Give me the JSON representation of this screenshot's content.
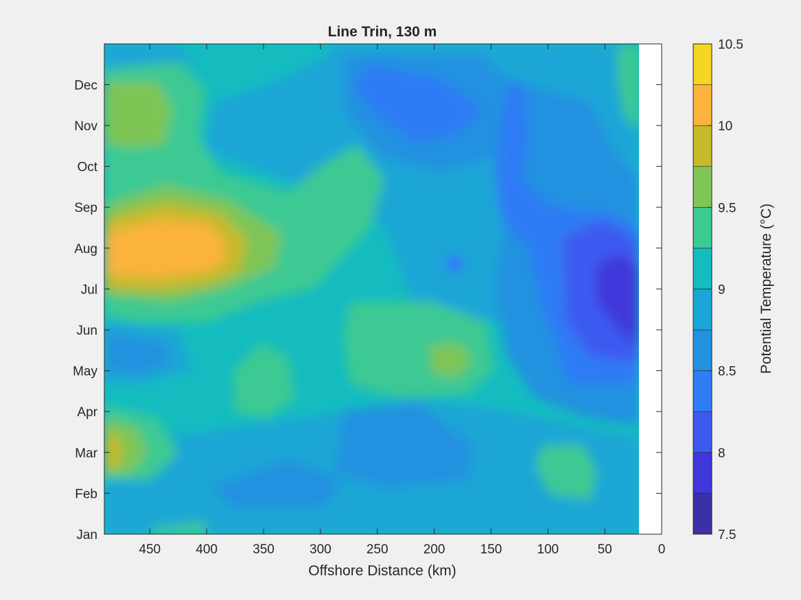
{
  "chart_data": {
    "type": "heatmap",
    "title": "Line Trin, 130 m",
    "xlabel": "Offshore Distance (km)",
    "ylabel": "",
    "x_reversed": true,
    "xlim": [
      0,
      490
    ],
    "x_ticks": [
      450,
      400,
      350,
      300,
      250,
      200,
      150,
      100,
      50,
      0
    ],
    "x_data_extent": [
      20,
      490
    ],
    "y_labels": [
      "Jan",
      "Feb",
      "Mar",
      "Apr",
      "May",
      "Jun",
      "Jul",
      "Aug",
      "Sep",
      "Oct",
      "Nov",
      "Dec"
    ],
    "colorbar": {
      "label": "Potential Temperature (°C)",
      "range": [
        7.5,
        10.5
      ],
      "tick_values": [
        7.5,
        8,
        8.5,
        9,
        9.5,
        10,
        10.5
      ],
      "tick_labels": [
        "7.5",
        "8",
        "8.5",
        "9",
        "9.5",
        "10",
        "10.5"
      ],
      "levels": [
        7.5,
        7.75,
        8.0,
        8.25,
        8.5,
        8.75,
        9.0,
        9.25,
        9.5,
        9.75,
        10.0,
        10.25,
        10.5
      ],
      "colors": [
        "#3d2fa6",
        "#4037da",
        "#3d5af0",
        "#2f7cf5",
        "#2291e0",
        "#1aa6d6",
        "#14bcc0",
        "#3dc993",
        "#7fc557",
        "#c6b92a",
        "#fbb33d",
        "#f5d623"
      ]
    },
    "features": [
      {
        "kind": "warm",
        "peak_c": 10.1,
        "x_km": 420,
        "month": "Aug"
      },
      {
        "kind": "warm",
        "peak_c": 9.7,
        "x_km": 450,
        "month": "Nov"
      },
      {
        "kind": "warm",
        "peak_c": 9.7,
        "x_km": 490,
        "month": "Mar"
      },
      {
        "kind": "warm",
        "peak_c": 9.6,
        "x_km": 185,
        "month": "May"
      },
      {
        "kind": "warm",
        "peak_c": 9.4,
        "x_km": 75,
        "month": "Mar"
      },
      {
        "kind": "warm",
        "peak_c": 9.4,
        "x_km": 345,
        "month": "Apr"
      },
      {
        "kind": "cold",
        "peak_c": 7.8,
        "x_km": 35,
        "month": "Jul"
      },
      {
        "kind": "cold",
        "peak_c": 8.3,
        "x_km": 200,
        "month": "Nov"
      },
      {
        "kind": "cold",
        "peak_c": 8.3,
        "x_km": 90,
        "month": "Sep"
      }
    ]
  }
}
